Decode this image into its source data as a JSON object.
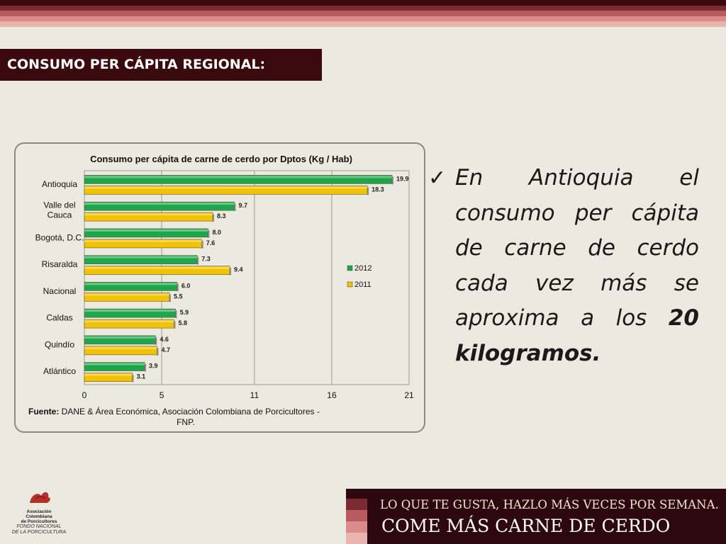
{
  "colors": {
    "stripes": [
      "#3A0A0F",
      "#7A2A32",
      "#B85A5F",
      "#D98A8A",
      "#EAB3B0"
    ],
    "title_bg": "#3A0A0F",
    "series_2012": "#1FA64A",
    "series_2011": "#F2C200",
    "banner_bg": "#2E0810"
  },
  "header": {
    "title": "CONSUMO PER CÁPITA REGIONAL:"
  },
  "chart_data": {
    "type": "bar",
    "orientation": "horizontal",
    "title": "Consumo per cápita de carne de cerdo por Dptos (Kg / Hab)",
    "categories": [
      "Antioquia",
      "Valle del Cauca",
      "Bogotá, D.C.",
      "Risaralda",
      "Nacional",
      "Caldas",
      "Quindío",
      "Atlántico"
    ],
    "series": [
      {
        "name": "2012",
        "values": [
          19.9,
          9.7,
          8.0,
          7.3,
          6.0,
          5.9,
          4.6,
          3.9
        ],
        "color": "#1FA64A"
      },
      {
        "name": "2011",
        "values": [
          18.3,
          8.3,
          7.6,
          9.4,
          5.5,
          5.8,
          4.7,
          3.1
        ],
        "color": "#F2C200"
      }
    ],
    "x_ticks": [
      "0",
      "5",
      "11",
      "16",
      "21"
    ],
    "xlim": [
      0,
      21
    ],
    "grid": true,
    "legend_position": "right",
    "source_label": "Fuente:",
    "source_text": "DANE &  Área Económica, Asociación Colombiana de Porcicultores - FNP."
  },
  "bullet": {
    "check_icon": "checkmark-icon",
    "text_before": "En Antioquia el consumo per cápita de carne de cerdo cada vez más se aproxima a los ",
    "text_bold": "20 kilogramos."
  },
  "logo": {
    "name_line1": "Asociación",
    "name_line2": "Colombiana",
    "name_line3": "de Porcicultores",
    "sub_line1": "FONDO NACIONAL",
    "sub_line2": "DE LA PORCICULTURA"
  },
  "banner": {
    "line1": "LO QUE TE GUSTA, HAZLO MÁS VECES POR SEMANA.",
    "line2": "COME MÁS CARNE DE CERDO"
  }
}
